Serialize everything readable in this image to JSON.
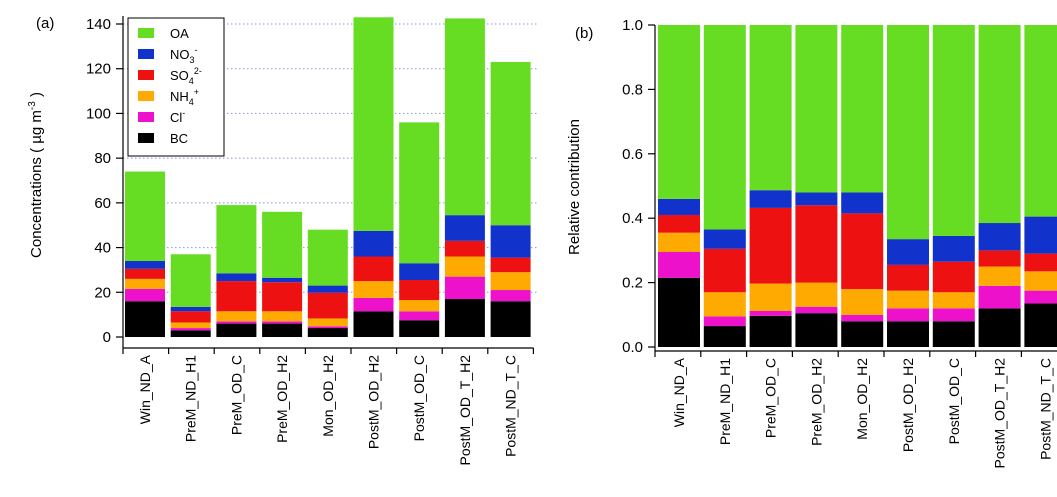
{
  "colors": {
    "OA": "#66dd22",
    "NO3": "#1133cc",
    "SO4": "#ee1111",
    "NH4": "#ffaa00",
    "Cl": "#ee11cc",
    "BC": "#000000"
  },
  "chart_data": [
    {
      "type": "bar",
      "stacked": true,
      "panel_label": "(a)",
      "ylabel": "Concentrations ( µg m⁻³ )",
      "ylabel_parts": {
        "main": "Concentrations  ( µg m",
        "exp": "-3",
        "close": " )"
      },
      "ylim": [
        0,
        143
      ],
      "yticks": [
        0,
        20,
        40,
        60,
        80,
        100,
        120,
        140
      ],
      "grid": "horizontal dotted",
      "legend_position": "top-left",
      "categories": [
        "Win_ND_A",
        "PreM_ND_H1",
        "PreM_OD_C",
        "PreM_OD_H2",
        "Mon_OD_H2",
        "PostM_OD_H2",
        "PostM_OD_C",
        "PostM_OD_T_H2",
        "PostM_ND_T_C"
      ],
      "series": [
        {
          "name": "BC",
          "values": [
            16,
            3,
            6,
            6,
            4,
            11.5,
            7.5,
            17,
            16
          ]
        },
        {
          "name": "Cl-",
          "values": [
            5.5,
            1,
            1,
            1,
            0.8,
            6,
            4,
            10,
            5
          ]
        },
        {
          "name": "NH4+",
          "values": [
            4.5,
            2.5,
            4.5,
            4.5,
            3.5,
            7.5,
            5,
            9,
            8
          ]
        },
        {
          "name": "SO42-",
          "values": [
            4.5,
            5,
            13.5,
            13,
            11.5,
            11,
            9,
            7,
            6.5
          ]
        },
        {
          "name": "NO3-",
          "values": [
            3.5,
            2,
            3.5,
            2,
            3.2,
            11.5,
            7.5,
            11.5,
            14.5
          ]
        },
        {
          "name": "OA",
          "values": [
            40,
            23.5,
            30.5,
            29.5,
            25,
            95.5,
            63,
            88,
            73
          ]
        }
      ],
      "totals": [
        74,
        37,
        59,
        56,
        48,
        143,
        96,
        142.5,
        123
      ]
    },
    {
      "type": "bar",
      "stacked": true,
      "panel_label": "(b)",
      "ylabel": "Relative contribution",
      "ylim": [
        0,
        1
      ],
      "yticks": [
        "0.0",
        "0.2",
        "0.4",
        "0.6",
        "0.8",
        "1.0"
      ],
      "categories": [
        "Win_ND_A",
        "PreM_ND_H1",
        "PreM_OD_C",
        "PreM_OD_H2",
        "Mon_OD_H2",
        "PostM_OD_H2",
        "PostM_OD_C",
        "PostM_OD_T_H2",
        "PostM_ND_T_C"
      ],
      "series": [
        {
          "name": "BC",
          "values": [
            0.215,
            0.065,
            0.097,
            0.105,
            0.08,
            0.08,
            0.08,
            0.12,
            0.135
          ]
        },
        {
          "name": "Cl-",
          "values": [
            0.08,
            0.03,
            0.015,
            0.02,
            0.02,
            0.04,
            0.04,
            0.07,
            0.04
          ]
        },
        {
          "name": "NH4+",
          "values": [
            0.06,
            0.075,
            0.085,
            0.075,
            0.08,
            0.055,
            0.05,
            0.06,
            0.06
          ]
        },
        {
          "name": "SO42-",
          "values": [
            0.055,
            0.135,
            0.235,
            0.24,
            0.235,
            0.08,
            0.095,
            0.05,
            0.055
          ]
        },
        {
          "name": "NO3-",
          "values": [
            0.05,
            0.06,
            0.055,
            0.04,
            0.065,
            0.08,
            0.08,
            0.085,
            0.115
          ]
        },
        {
          "name": "OA",
          "values": [
            0.54,
            0.635,
            0.513,
            0.52,
            0.52,
            0.665,
            0.655,
            0.615,
            0.595
          ]
        }
      ]
    }
  ],
  "legend": [
    {
      "key": "OA",
      "base": "OA",
      "sub": "",
      "sup": ""
    },
    {
      "key": "NO3",
      "base": "NO",
      "sub": "3",
      "sup": "-"
    },
    {
      "key": "SO4",
      "base": "SO",
      "sub": "4",
      "sup": "2-"
    },
    {
      "key": "NH4",
      "base": "NH",
      "sub": "4",
      "sup": "+"
    },
    {
      "key": "Cl",
      "base": "Cl",
      "sub": "",
      "sup": "-"
    },
    {
      "key": "BC",
      "base": "BC",
      "sub": "",
      "sup": ""
    }
  ]
}
